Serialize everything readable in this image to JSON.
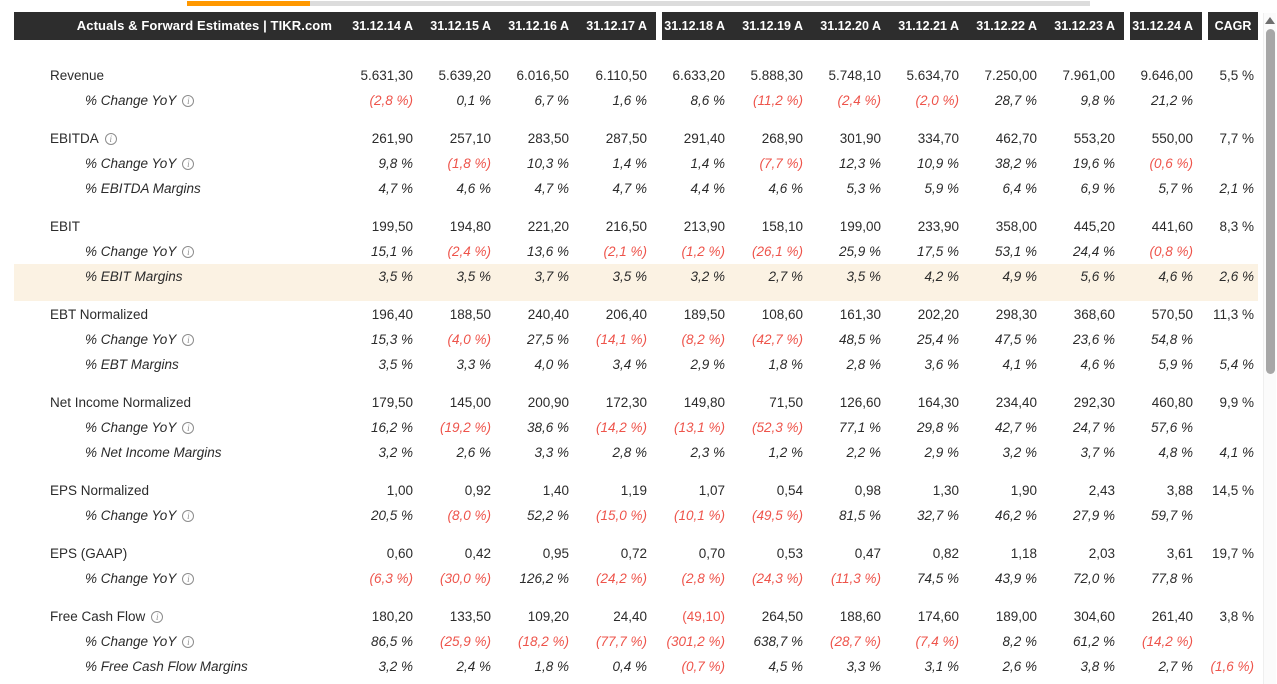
{
  "colors": {
    "accent_orange": "#ff9800",
    "negative_red": "#ee544b",
    "header_bg": "#2d2d2d",
    "highlight_bg": "#fbf2e3",
    "scroll_thumb_gray": "#a7a7a7"
  },
  "table": {
    "title": "Actuals & Forward Estimates | TIKR.com",
    "columns": [
      {
        "label": "31.12.14 A",
        "gap": false
      },
      {
        "label": "31.12.15 A",
        "gap": false
      },
      {
        "label": "31.12.16 A",
        "gap": false
      },
      {
        "label": "31.12.17 A",
        "gap": false
      },
      {
        "label": "31.12.18 A",
        "gap": true
      },
      {
        "label": "31.12.19 A",
        "gap": false
      },
      {
        "label": "31.12.20 A",
        "gap": false
      },
      {
        "label": "31.12.21 A",
        "gap": false
      },
      {
        "label": "31.12.22 A",
        "gap": false
      },
      {
        "label": "31.12.23 A",
        "gap": false
      },
      {
        "label": "31.12.24 A",
        "gap": true
      },
      {
        "label": "CAGR",
        "gap": true
      }
    ],
    "rows": [
      {
        "label": "Revenue",
        "style": "main",
        "info": false,
        "values": [
          "5.631,30",
          "5.639,20",
          "6.016,50",
          "6.110,50",
          "6.633,20",
          "5.888,30",
          "5.748,10",
          "5.634,70",
          "7.250,00",
          "7.961,00",
          "9.646,00",
          "5,5 %"
        ]
      },
      {
        "label": "% Change YoY",
        "style": "sub",
        "info": true,
        "values": [
          "(2,8 %)",
          "0,1 %",
          "6,7 %",
          "1,6 %",
          "8,6 %",
          "(11,2 %)",
          "(2,4 %)",
          "(2,0 %)",
          "28,7 %",
          "9,8 %",
          "21,2 %",
          ""
        ]
      },
      {
        "type": "spacer"
      },
      {
        "label": "EBITDA",
        "style": "main",
        "info": true,
        "values": [
          "261,90",
          "257,10",
          "283,50",
          "287,50",
          "291,40",
          "268,90",
          "301,90",
          "334,70",
          "462,70",
          "553,20",
          "550,00",
          "7,7 %"
        ]
      },
      {
        "label": "% Change YoY",
        "style": "sub",
        "info": true,
        "values": [
          "9,8 %",
          "(1,8 %)",
          "10,3 %",
          "1,4 %",
          "1,4 %",
          "(7,7 %)",
          "12,3 %",
          "10,9 %",
          "38,2 %",
          "19,6 %",
          "(0,6 %)",
          ""
        ]
      },
      {
        "label": "% EBITDA Margins",
        "style": "sub",
        "info": false,
        "values": [
          "4,7 %",
          "4,6 %",
          "4,7 %",
          "4,7 %",
          "4,4 %",
          "4,6 %",
          "5,3 %",
          "5,9 %",
          "6,4 %",
          "6,9 %",
          "5,7 %",
          "2,1 %"
        ]
      },
      {
        "type": "spacer"
      },
      {
        "label": "EBIT",
        "style": "main",
        "info": false,
        "values": [
          "199,50",
          "194,80",
          "221,20",
          "216,50",
          "213,90",
          "158,10",
          "199,00",
          "233,90",
          "358,00",
          "445,20",
          "441,60",
          "8,3 %"
        ]
      },
      {
        "label": "% Change YoY",
        "style": "sub",
        "info": true,
        "values": [
          "15,1 %",
          "(2,4 %)",
          "13,6 %",
          "(2,1 %)",
          "(1,2 %)",
          "(26,1 %)",
          "25,9 %",
          "17,5 %",
          "53,1 %",
          "24,4 %",
          "(0,8 %)",
          ""
        ]
      },
      {
        "label": "% EBIT Margins",
        "style": "sub",
        "info": false,
        "highlight": true,
        "values": [
          "3,5 %",
          "3,5 %",
          "3,7 %",
          "3,5 %",
          "3,2 %",
          "2,7 %",
          "3,5 %",
          "4,2 %",
          "4,9 %",
          "5,6 %",
          "4,6 %",
          "2,6 %"
        ]
      },
      {
        "type": "spacer",
        "small": true
      },
      {
        "label": "EBT Normalized",
        "style": "main",
        "info": false,
        "values": [
          "196,40",
          "188,50",
          "240,40",
          "206,40",
          "189,50",
          "108,60",
          "161,30",
          "202,20",
          "298,30",
          "368,60",
          "570,50",
          "11,3 %"
        ]
      },
      {
        "label": "% Change YoY",
        "style": "sub",
        "info": true,
        "values": [
          "15,3 %",
          "(4,0 %)",
          "27,5 %",
          "(14,1 %)",
          "(8,2 %)",
          "(42,7 %)",
          "48,5 %",
          "25,4 %",
          "47,5 %",
          "23,6 %",
          "54,8 %",
          ""
        ]
      },
      {
        "label": "% EBT Margins",
        "style": "sub",
        "info": false,
        "values": [
          "3,5 %",
          "3,3 %",
          "4,0 %",
          "3,4 %",
          "2,9 %",
          "1,8 %",
          "2,8 %",
          "3,6 %",
          "4,1 %",
          "4,6 %",
          "5,9 %",
          "5,4 %"
        ]
      },
      {
        "type": "spacer"
      },
      {
        "label": "Net Income Normalized",
        "style": "main",
        "info": false,
        "values": [
          "179,50",
          "145,00",
          "200,90",
          "172,30",
          "149,80",
          "71,50",
          "126,60",
          "164,30",
          "234,40",
          "292,30",
          "460,80",
          "9,9 %"
        ]
      },
      {
        "label": "% Change YoY",
        "style": "sub",
        "info": true,
        "values": [
          "16,2 %",
          "(19,2 %)",
          "38,6 %",
          "(14,2 %)",
          "(13,1 %)",
          "(52,3 %)",
          "77,1 %",
          "29,8 %",
          "42,7 %",
          "24,7 %",
          "57,6 %",
          ""
        ]
      },
      {
        "label": "% Net Income Margins",
        "style": "sub",
        "info": false,
        "values": [
          "3,2 %",
          "2,6 %",
          "3,3 %",
          "2,8 %",
          "2,3 %",
          "1,2 %",
          "2,2 %",
          "2,9 %",
          "3,2 %",
          "3,7 %",
          "4,8 %",
          "4,1 %"
        ]
      },
      {
        "type": "spacer"
      },
      {
        "label": "EPS Normalized",
        "style": "main",
        "info": false,
        "values": [
          "1,00",
          "0,92",
          "1,40",
          "1,19",
          "1,07",
          "0,54",
          "0,98",
          "1,30",
          "1,90",
          "2,43",
          "3,88",
          "14,5 %"
        ]
      },
      {
        "label": "% Change YoY",
        "style": "sub",
        "info": true,
        "values": [
          "20,5 %",
          "(8,0 %)",
          "52,2 %",
          "(15,0 %)",
          "(10,1 %)",
          "(49,5 %)",
          "81,5 %",
          "32,7 %",
          "46,2 %",
          "27,9 %",
          "59,7 %",
          ""
        ]
      },
      {
        "type": "spacer"
      },
      {
        "label": "EPS (GAAP)",
        "style": "main",
        "info": false,
        "values": [
          "0,60",
          "0,42",
          "0,95",
          "0,72",
          "0,70",
          "0,53",
          "0,47",
          "0,82",
          "1,18",
          "2,03",
          "3,61",
          "19,7 %"
        ]
      },
      {
        "label": "% Change YoY",
        "style": "sub",
        "info": true,
        "values": [
          "(6,3 %)",
          "(30,0 %)",
          "126,2 %",
          "(24,2 %)",
          "(2,8 %)",
          "(24,3 %)",
          "(11,3 %)",
          "74,5 %",
          "43,9 %",
          "72,0 %",
          "77,8 %",
          ""
        ]
      },
      {
        "type": "spacer"
      },
      {
        "label": "Free Cash Flow",
        "style": "main",
        "info": true,
        "values": [
          "180,20",
          "133,50",
          "109,20",
          "24,40",
          "(49,10)",
          "264,50",
          "188,60",
          "174,60",
          "189,00",
          "304,60",
          "261,40",
          "3,8 %"
        ]
      },
      {
        "label": "% Change YoY",
        "style": "sub",
        "info": true,
        "values": [
          "86,5 %",
          "(25,9 %)",
          "(18,2 %)",
          "(77,7 %)",
          "(301,2 %)",
          "638,7 %",
          "(28,7 %)",
          "(7,4 %)",
          "8,2 %",
          "61,2 %",
          "(14,2 %)",
          ""
        ]
      },
      {
        "label": "% Free Cash Flow Margins",
        "style": "sub",
        "info": false,
        "values": [
          "3,2 %",
          "2,4 %",
          "1,8 %",
          "0,4 %",
          "(0,7 %)",
          "4,5 %",
          "3,3 %",
          "3,1 %",
          "2,6 %",
          "3,8 %",
          "2,7 %",
          "(1,6 %)"
        ]
      }
    ]
  }
}
